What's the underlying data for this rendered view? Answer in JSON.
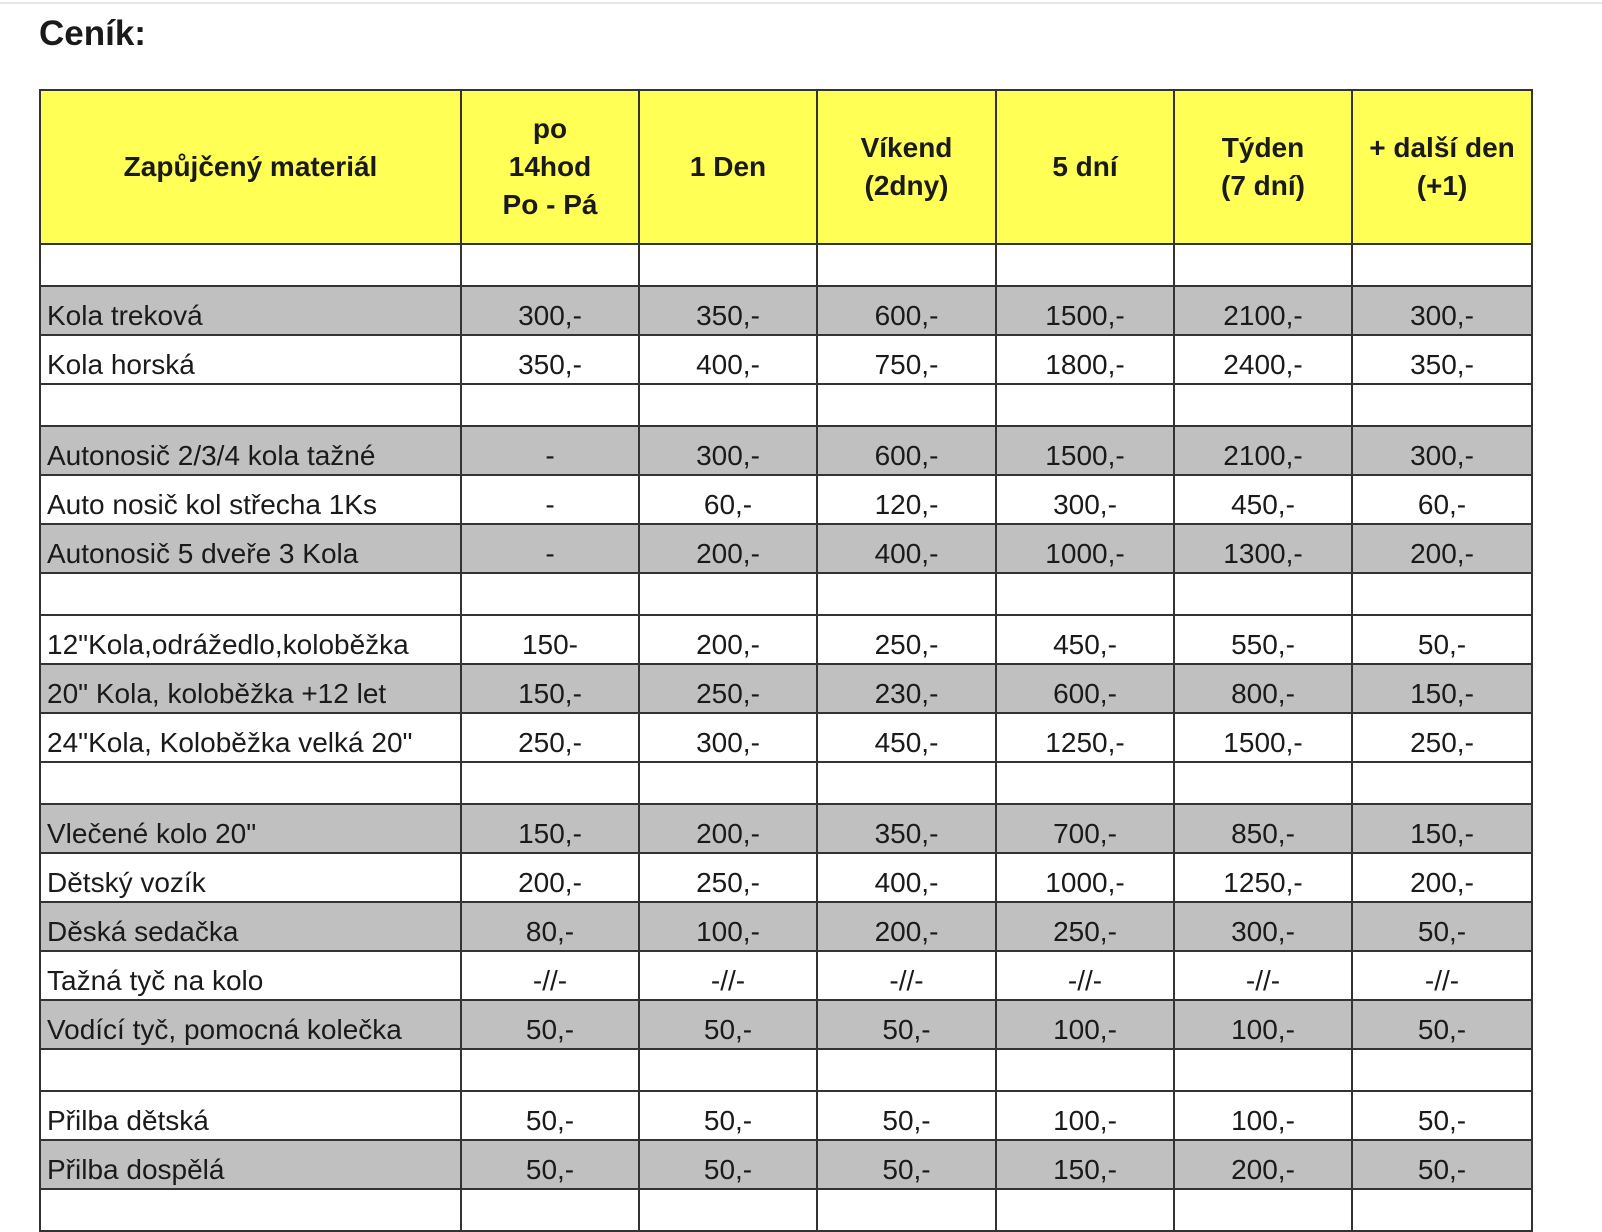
{
  "title": "Ceník:",
  "colors": {
    "header_bg": "#ffff55",
    "alt_row_bg": "#c0c0c0"
  },
  "headers": [
    "Zapůjčený materiál",
    "po\n14hod\nPo - Pá",
    "1 Den",
    "Víkend\n(2dny)",
    "5 dní",
    "Týden\n(7 dní)",
    "+ další den\n(+1)"
  ],
  "rows": [
    {
      "cells": [
        "",
        "",
        "",
        "",
        "",
        "",
        ""
      ],
      "shaded": false,
      "empty": true
    },
    {
      "cells": [
        "Kola treková",
        "300,-",
        "350,-",
        "600,-",
        "1500,-",
        "2100,-",
        "300,-"
      ],
      "shaded": true
    },
    {
      "cells": [
        "Kola horská",
        "350,-",
        "400,-",
        "750,-",
        "1800,-",
        "2400,-",
        "350,-"
      ],
      "shaded": false
    },
    {
      "cells": [
        "",
        "",
        "",
        "",
        "",
        "",
        ""
      ],
      "shaded": false,
      "empty": true
    },
    {
      "cells": [
        "Autonosič 2/3/4 kola tažné",
        "-",
        "300,-",
        "600,-",
        "1500,-",
        "2100,-",
        "300,-"
      ],
      "shaded": true
    },
    {
      "cells": [
        "Auto nosič kol střecha 1Ks",
        "-",
        "60,-",
        "120,-",
        "300,-",
        "450,-",
        "60,-"
      ],
      "shaded": false
    },
    {
      "cells": [
        "Autonosič 5 dveře 3 Kola",
        "-",
        "200,-",
        "400,-",
        "1000,-",
        "1300,-",
        "200,-"
      ],
      "shaded": true
    },
    {
      "cells": [
        "",
        "",
        "",
        "",
        "",
        "",
        ""
      ],
      "shaded": false,
      "empty": true
    },
    {
      "cells": [
        "12\"Kola,odrážedlo,koloběžka",
        "150-",
        "200,-",
        "250,-",
        "450,-",
        "550,-",
        "50,-"
      ],
      "shaded": false
    },
    {
      "cells": [
        "20\" Kola, koloběžka +12 let",
        "150,-",
        "250,-",
        "230,-",
        "600,-",
        "800,-",
        "150,-"
      ],
      "shaded": true
    },
    {
      "cells": [
        "24\"Kola, Koloběžka velká 20\"",
        "250,-",
        "300,-",
        "450,-",
        "1250,-",
        "1500,-",
        "250,-"
      ],
      "shaded": false
    },
    {
      "cells": [
        "",
        "",
        "",
        "",
        "",
        "",
        ""
      ],
      "shaded": false,
      "empty": true
    },
    {
      "cells": [
        "Vlečené kolo 20\"",
        "150,-",
        "200,-",
        "350,-",
        "700,-",
        "850,-",
        "150,-"
      ],
      "shaded": true
    },
    {
      "cells": [
        "Dětský vozík",
        "200,-",
        "250,-",
        "400,-",
        "1000,-",
        "1250,-",
        "200,-"
      ],
      "shaded": false
    },
    {
      "cells": [
        "Děská sedačka",
        "80,-",
        "100,-",
        "200,-",
        "250,-",
        "300,-",
        "50,-"
      ],
      "shaded": true
    },
    {
      "cells": [
        "Tažná tyč na kolo",
        "-//-",
        "-//-",
        "-//-",
        "-//-",
        "-//-",
        "-//-"
      ],
      "shaded": false
    },
    {
      "cells": [
        "Vodící tyč, pomocná kolečka",
        "50,-",
        "50,-",
        "50,-",
        "100,-",
        "100,-",
        "50,-"
      ],
      "shaded": true
    },
    {
      "cells": [
        "",
        "",
        "",
        "",
        "",
        "",
        ""
      ],
      "shaded": false,
      "empty": true
    },
    {
      "cells": [
        "Přilba dětská",
        "50,-",
        "50,-",
        "50,-",
        "100,-",
        "100,-",
        "50,-"
      ],
      "shaded": false
    },
    {
      "cells": [
        "Přilba dospělá",
        "50,-",
        "50,-",
        "50,-",
        "150,-",
        "200,-",
        "50,-"
      ],
      "shaded": true
    },
    {
      "cells": [
        "",
        "",
        "",
        "",
        "",
        "",
        ""
      ],
      "shaded": false,
      "empty": true
    }
  ]
}
